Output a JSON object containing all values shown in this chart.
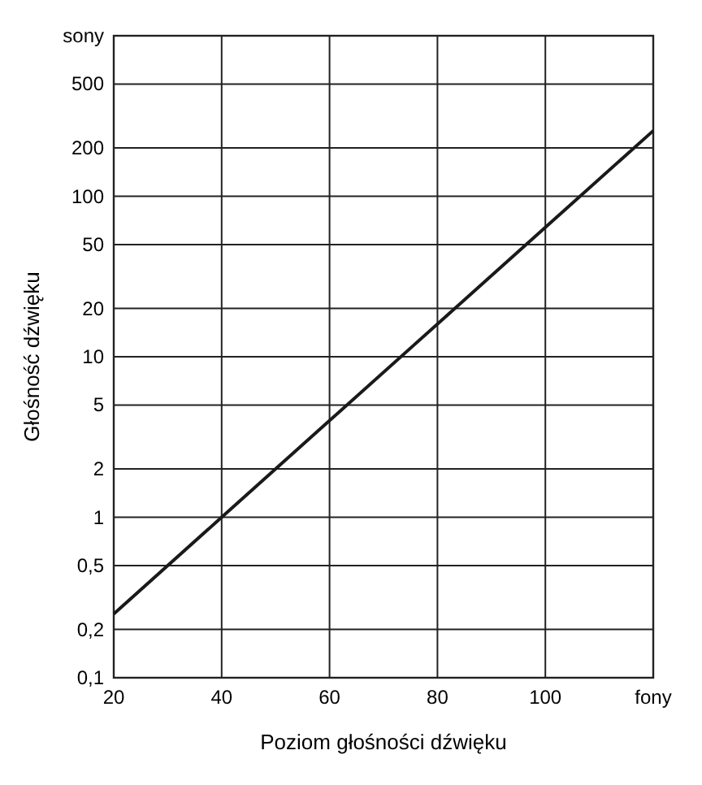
{
  "chart_data": {
    "type": "line",
    "xlabel": "Poziom głośności dźwięku",
    "ylabel": "Głośność dźwięku",
    "x": [
      20,
      40,
      60,
      80,
      100,
      120
    ],
    "series": [
      {
        "color": "#1a1a1a",
        "values": [
          0.25,
          1,
          4,
          16,
          64,
          256
        ]
      }
    ],
    "xlim": [
      20,
      120
    ],
    "ylim": [
      0.1,
      1000
    ],
    "log": "y",
    "grid": true,
    "xticks": [
      20,
      40,
      60,
      80,
      100,
      {
        "value": 120,
        "label": "fony"
      }
    ],
    "yticks": [
      {
        "value": 0.1,
        "label": "0,1"
      },
      {
        "value": 0.2,
        "label": "0,2"
      },
      {
        "value": 0.5,
        "label": "0,5"
      },
      1,
      2,
      5,
      10,
      20,
      50,
      100,
      200,
      500,
      {
        "value": 1000,
        "label": "sony"
      }
    ]
  }
}
